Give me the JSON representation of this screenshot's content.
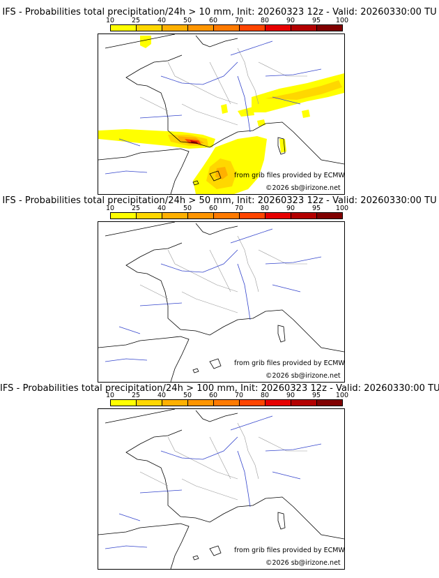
{
  "panels": [
    {
      "title": "IFS - Probabilities total precipitation/24h > 10 mm, Init: 20260323 12z - Valid: 20260330:00 TU",
      "threshold_mm": 10
    },
    {
      "title": "IFS - Probabilities total precipitation/24h > 50 mm, Init: 20260323 12z - Valid: 20260330:00 TU",
      "threshold_mm": 50
    },
    {
      "title": "IFS - Probabilities total precipitation/24h > 100 mm, Init: 20260323 12z - Valid: 20260330:00 TU",
      "threshold_mm": 100
    }
  ],
  "colorbar": {
    "labels": [
      "10",
      "25",
      "40",
      "50",
      "60",
      "70",
      "80",
      "90",
      "95",
      "100"
    ],
    "colors": [
      "#ffff00",
      "#ffd700",
      "#ffb000",
      "#ff9500",
      "#ff7a00",
      "#ff4500",
      "#e60000",
      "#b30000",
      "#800000"
    ]
  },
  "credits": {
    "source": "from grib files provided by ECMWF",
    "copyright": "©2026 sb@irizone.net"
  }
}
